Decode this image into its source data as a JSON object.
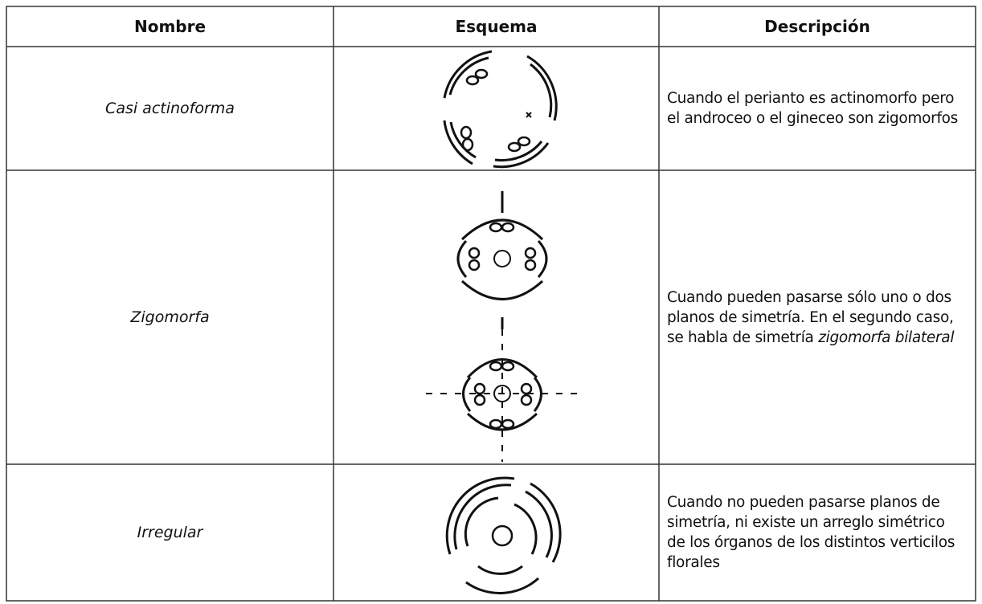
{
  "table": {
    "headers": [
      "Nombre",
      "Esquema",
      "Descripción"
    ],
    "rows": [
      {
        "name": "Casi actinoforma",
        "description": "Cuando el perianto es actinomorfo pero el androceo o el gineceo son zigomorfos"
      },
      {
        "name": "Zigomorfa",
        "description": "Cuando pueden pasarse sólo uno o dos planos de simetría. En el segundo caso, se habla de simetría",
        "description_italic": "zigomorfa bilateral"
      },
      {
        "name": "Irregular",
        "description": "Cuando no pueden pasarse planos de simetría, ni existe un arreglo simétrico de los órganos de los distintos verticilos florales"
      }
    ]
  }
}
